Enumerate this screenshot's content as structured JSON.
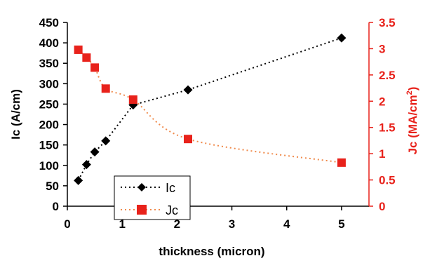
{
  "chart_data": {
    "type": "line",
    "xlabel": "thickness (micron)",
    "ylabel_left": "Ic (A/cm)",
    "ylabel_right_main": "Jc (MA/cm",
    "ylabel_right_sup": "2",
    "ylabel_right_close": ")",
    "xlim": [
      0,
      5.5
    ],
    "xticks": [
      "0",
      "1",
      "2",
      "3",
      "4",
      "5"
    ],
    "ylim_left": [
      0,
      450
    ],
    "yticks_left": [
      "0",
      "50",
      "100",
      "150",
      "200",
      "250",
      "300",
      "350",
      "400",
      "450"
    ],
    "ylim_right": [
      0,
      3.5
    ],
    "yticks_right": [
      "0",
      "0.5",
      "1",
      "1.5",
      "2",
      "2.5",
      "3",
      "3.5"
    ],
    "grid": false,
    "legend_position": "bottom-left-center",
    "series": [
      {
        "name": "Ic",
        "axis": "left",
        "color": "#000000",
        "marker": "diamond",
        "x": [
          0.2,
          0.35,
          0.5,
          0.7,
          1.2,
          2.2,
          5.0
        ],
        "y": [
          63,
          102,
          133,
          160,
          248,
          285,
          412
        ]
      },
      {
        "name": "Jc",
        "axis": "right",
        "color": "#e8221b",
        "marker": "square",
        "x": [
          0.2,
          0.35,
          0.5,
          0.7,
          1.2,
          2.2,
          5.0
        ],
        "y": [
          2.98,
          2.83,
          2.64,
          2.24,
          2.03,
          1.28,
          0.83
        ]
      }
    ]
  },
  "colors": {
    "left_axis": "#000000",
    "right_axis": "#e8221b",
    "jc_line": "#f08a4b"
  }
}
